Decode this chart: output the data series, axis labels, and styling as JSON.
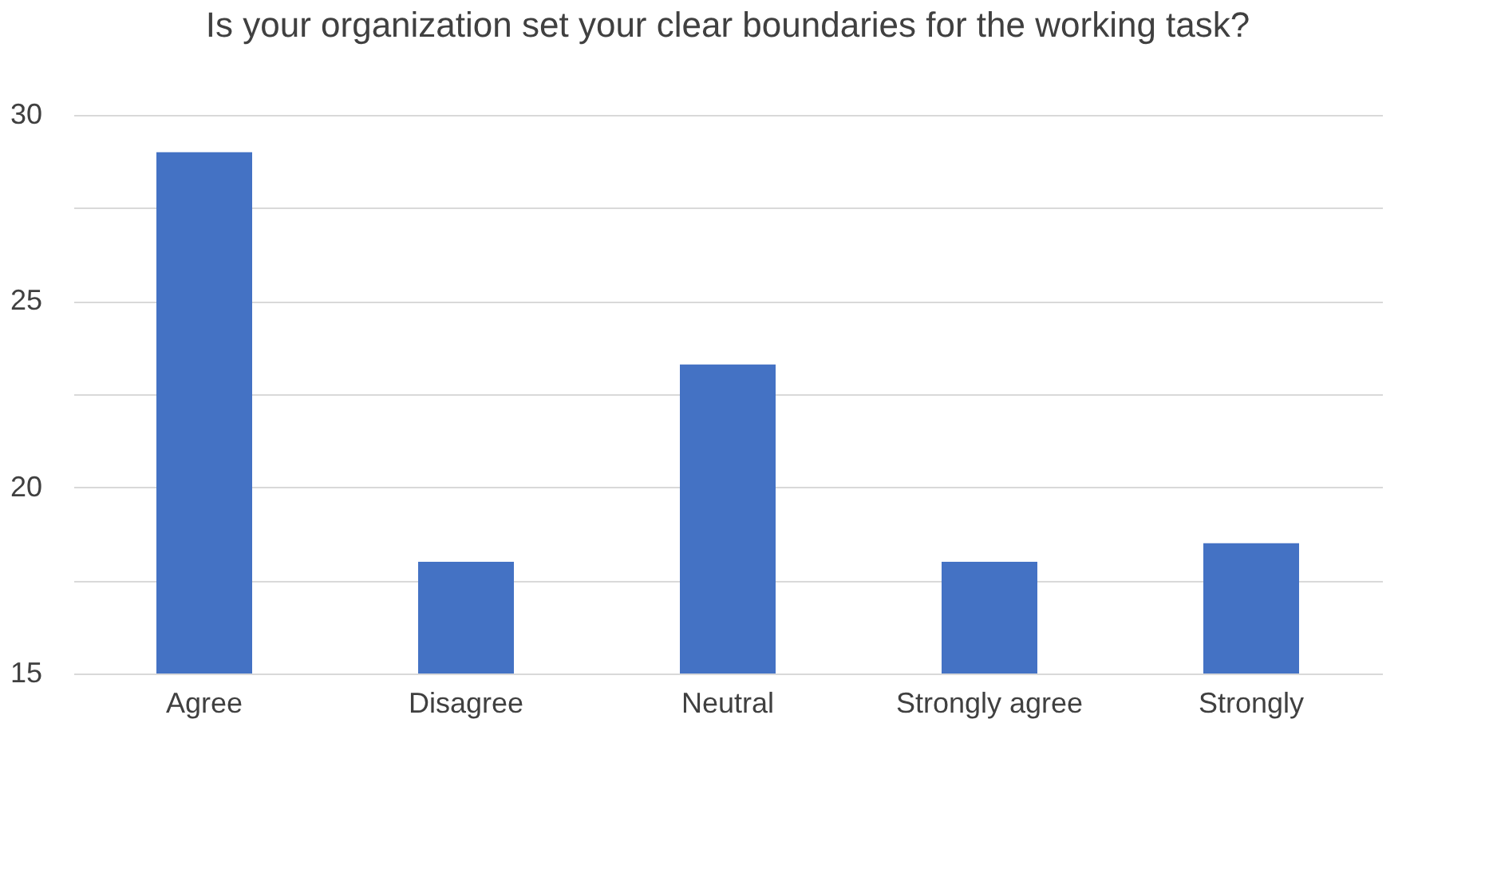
{
  "chart_data": {
    "type": "bar",
    "title": "Is your organization set your clear boundaries for the working task?",
    "categories": [
      "Agree",
      "Disagree",
      "Neutral",
      "Strongly agree",
      "Strongly"
    ],
    "values": [
      29,
      18,
      23.3,
      18,
      18.5
    ],
    "color": "#4472c4",
    "ylim": [
      15,
      30
    ],
    "yticks": [
      15,
      {
        "value": 17.5,
        "label": null
      },
      20,
      {
        "value": 22.5,
        "label": null
      },
      25,
      {
        "value": 27.5,
        "label": null
      },
      30
    ],
    "grid": "y"
  }
}
